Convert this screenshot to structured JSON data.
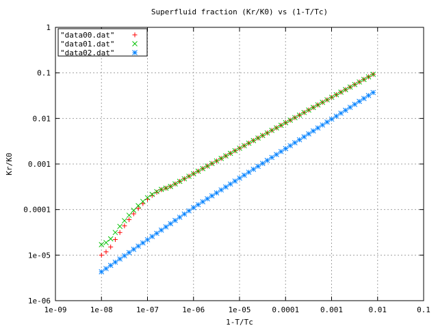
{
  "chart_data": {
    "type": "scatter",
    "title": "Superfluid fraction (Kr/K0) vs (1-T/Tc)",
    "xlabel": "1-T/Tc",
    "ylabel": "Kr/K0",
    "xscale": "log",
    "yscale": "log",
    "xlim": [
      1e-09,
      0.1
    ],
    "ylim": [
      1e-06,
      1
    ],
    "x_ticks": [
      "1e-09",
      "1e-08",
      "1e-07",
      "1e-06",
      "1e-05",
      "0.0001",
      "0.001",
      "0.01",
      "0.1"
    ],
    "y_ticks": [
      "1e-06",
      "1e-05",
      "0.0001",
      "0.001",
      "0.01",
      "0.1",
      "1"
    ],
    "grid": true,
    "legend_position": "top-left",
    "x_range": {
      "start": 1e-08,
      "end": 0.008,
      "points": 60
    },
    "series": [
      {
        "name": "\"data00.dat\"",
        "color": "#ff0000",
        "marker": "plus",
        "values": [
          1e-05,
          1.3e-05,
          0.0003,
          0.093
        ]
      },
      {
        "name": "\"data01.dat\"",
        "color": "#00c000",
        "marker": "cross",
        "values": [
          1.7e-05,
          2e-05,
          0.0003,
          0.093
        ]
      },
      {
        "name": "\"data02.dat\"",
        "color": "#0080ff",
        "marker": "star",
        "values": [
          4.3e-06,
          0.00011,
          0.037
        ]
      }
    ]
  }
}
